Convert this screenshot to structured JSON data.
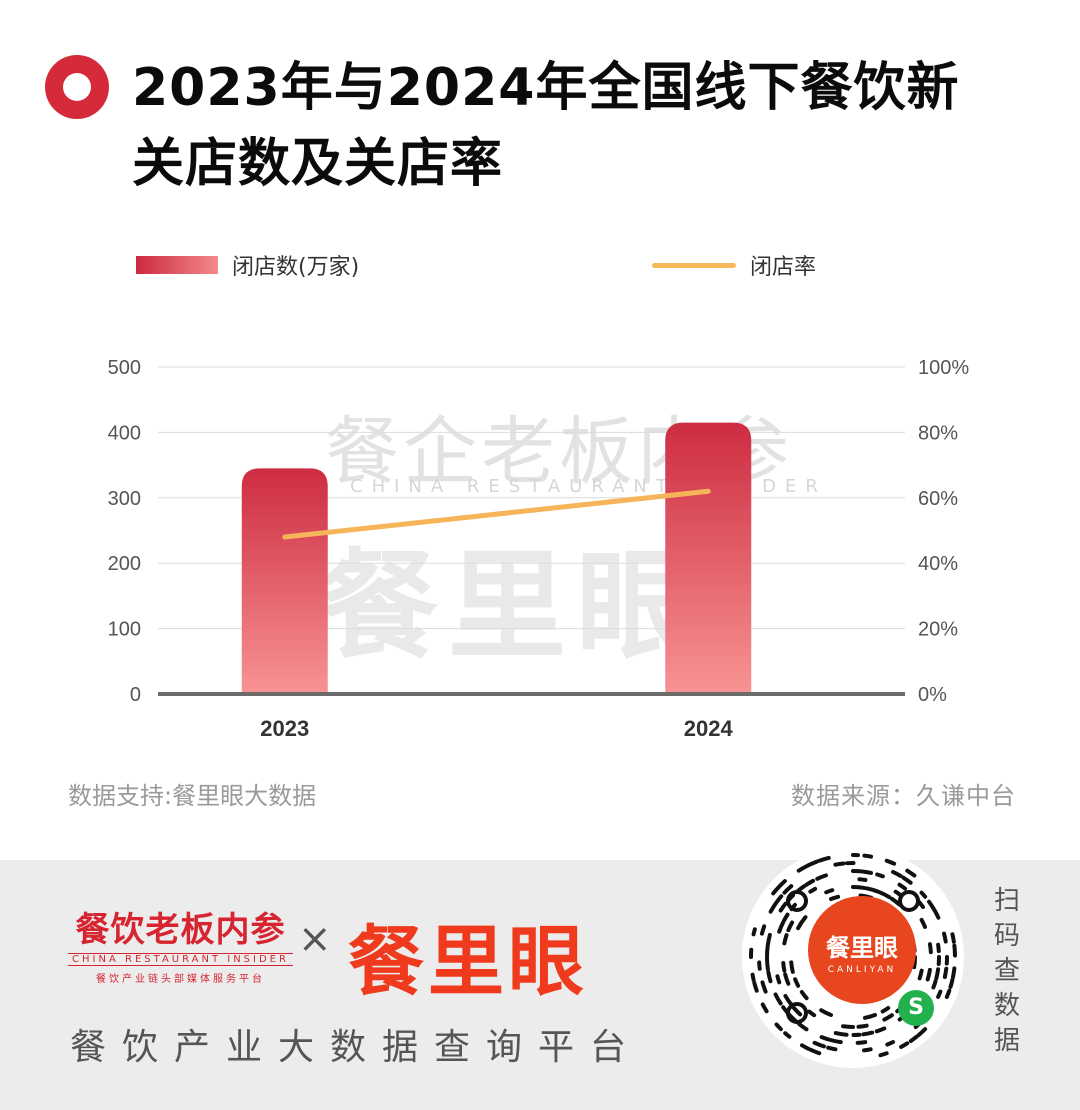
{
  "title": "2023年与2024年全国线下餐饮新关店数及关店率",
  "legend": {
    "bar_label": "闭店数(万家)",
    "line_label": "闭店率"
  },
  "chart_data": {
    "type": "bar",
    "categories": [
      "2023",
      "2024"
    ],
    "series": [
      {
        "name": "闭店数(万家)",
        "type": "bar",
        "axis": "left",
        "values": [
          345,
          415
        ]
      },
      {
        "name": "闭店率",
        "type": "line",
        "axis": "right",
        "values": [
          0.48,
          0.62
        ]
      }
    ],
    "y_left": {
      "min": 0,
      "max": 500,
      "ticks": [
        "0",
        "100",
        "200",
        "300",
        "400",
        "500"
      ]
    },
    "y_right": {
      "min": 0,
      "max": 1,
      "ticks": [
        "0%",
        "20%",
        "40%",
        "60%",
        "80%",
        "100%"
      ]
    },
    "grid": true,
    "legend_position": "top",
    "colors": {
      "bar_top": "#cd2c41",
      "bar_bottom": "#f89393",
      "line": "#f6b55a",
      "axis": "#6b6b6b",
      "grid": "#dcdcdc"
    }
  },
  "watermark": {
    "line1": "餐企老板内参",
    "line2": "CHINA RESTAURANT INSIDER",
    "line3": "餐里眼"
  },
  "source": {
    "left": "数据支持:餐里眼大数据",
    "right": "数据来源：久谦中台"
  },
  "footer": {
    "brand1_zh": "餐饮老板内参",
    "brand1_en": "CHINA RESTAURANT INSIDER",
    "brand1_sub": "餐饮产业链头部媒体服务平台",
    "cross": "×",
    "brand2": "餐里眼",
    "tagline": "餐饮产业大数据查询平台",
    "qr_center": "餐里眼",
    "qr_center_en": "CANLIYAN",
    "scan_text": "扫码查数据"
  }
}
